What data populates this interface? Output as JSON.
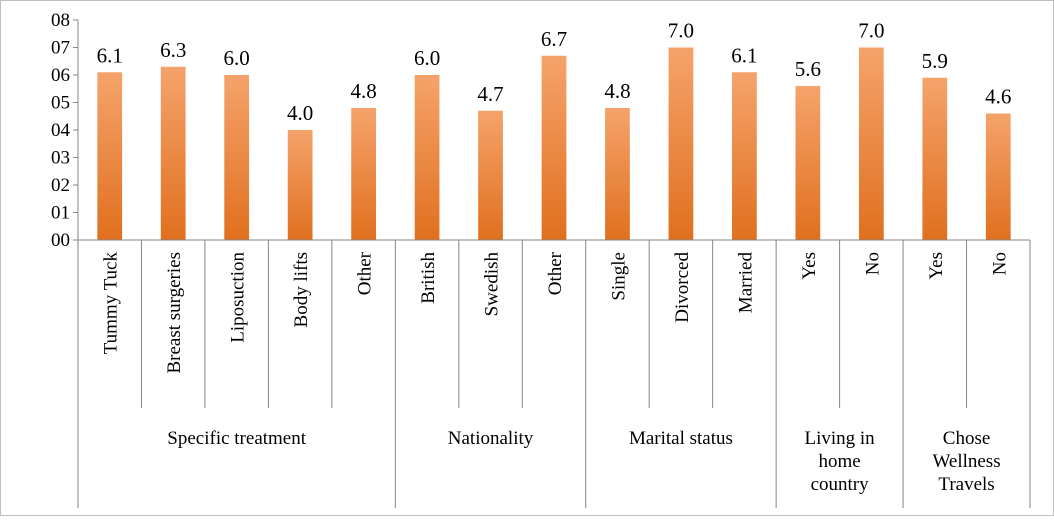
{
  "chart_data": {
    "type": "bar",
    "title": "",
    "xlabel": "",
    "ylabel": "",
    "ylim": [
      0,
      8
    ],
    "yticks": [
      "00",
      "01",
      "02",
      "03",
      "04",
      "05",
      "06",
      "07",
      "08"
    ],
    "grid": false,
    "legend": "none",
    "bar_color": "#ED7D31",
    "bar_color_light": "#F5A36B",
    "bar_color_dark": "#E0701F",
    "groups": [
      {
        "label": "Specific treatment",
        "categories": [
          "Tummy Tuck",
          "Breast surgeries",
          "Liposuction",
          "Body lifts",
          "Other"
        ],
        "values": [
          6.1,
          6.3,
          6.0,
          4.0,
          4.8
        ],
        "data_labels": [
          "6.1",
          "6.3",
          "6.0",
          "4.0",
          "4.8"
        ]
      },
      {
        "label": "Nationality",
        "categories": [
          "British",
          "Swedish",
          "Other"
        ],
        "values": [
          6.0,
          4.7,
          6.7
        ],
        "data_labels": [
          "6.0",
          "4.7",
          "6.7"
        ]
      },
      {
        "label": "Marital status",
        "categories": [
          "Single",
          "Divorced",
          "Married"
        ],
        "values": [
          4.8,
          7.0,
          6.1
        ],
        "data_labels": [
          "4.8",
          "7.0",
          "6.1"
        ]
      },
      {
        "label": "Living in home country",
        "label_lines": [
          "Living in",
          "home",
          "country"
        ],
        "categories": [
          "Yes",
          "No"
        ],
        "values": [
          5.6,
          7.0
        ],
        "data_labels": [
          "5.6",
          "7.0"
        ]
      },
      {
        "label": "Chose Wellness Travels",
        "label_lines": [
          "Chose",
          "Wellness",
          "Travels"
        ],
        "categories": [
          "Yes",
          "No"
        ],
        "values": [
          5.9,
          4.6
        ],
        "data_labels": [
          "5.9",
          "4.6"
        ]
      }
    ]
  }
}
